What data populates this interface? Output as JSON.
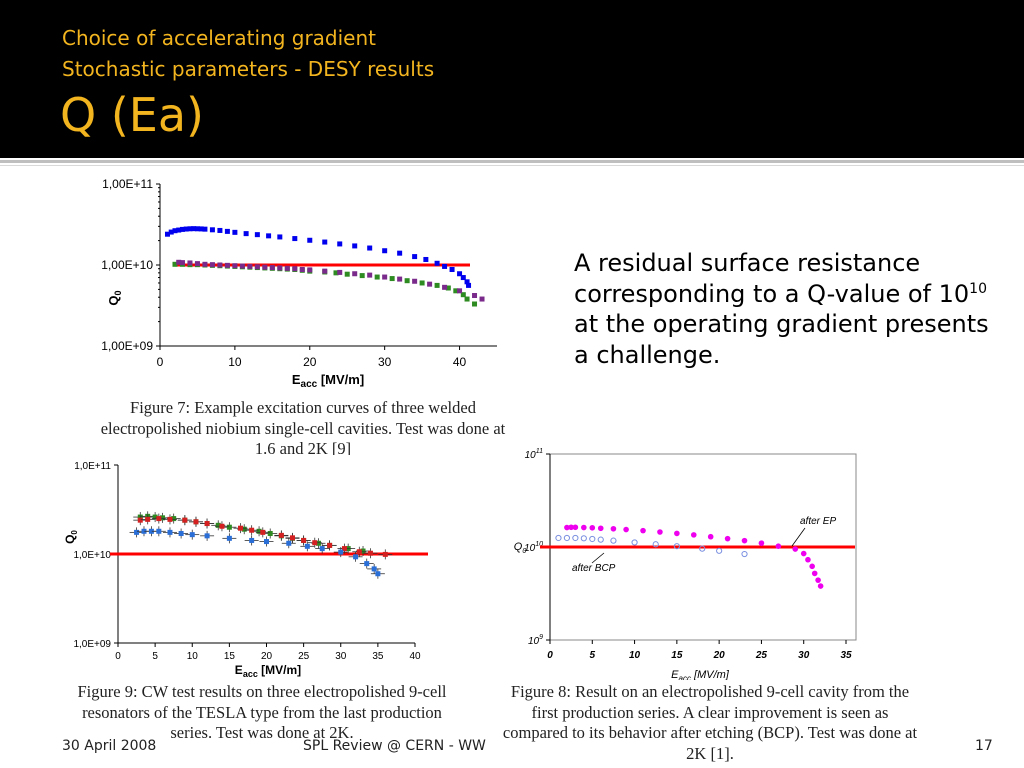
{
  "slide": {
    "subtitle_line1": "Choice of accelerating gradient",
    "subtitle_line2": "Stochastic parameters - DESY results",
    "title": "Q (Ea)",
    "body_before": "A residual surface resistance corresponding to a Q-value of 10",
    "body_sup": "10",
    "body_after": " at the operating gradient presents a challenge.",
    "footer_date": "30 April 2008",
    "footer_center": "SPL Review  @ CERN - WW",
    "page_number": "17",
    "colors": {
      "header_bg": "#000000",
      "title": "#f3b51f",
      "threshold_line": "#ff0000"
    }
  },
  "chart_data": [
    {
      "type": "scatter",
      "figure": "fig7",
      "caption": "Figure 7: Example excitation curves of three welded electropolished niobium single-cell cavities. Test was done at 1.6 and 2K [9]",
      "xlabel_main": "E",
      "xlabel_sub": "acc",
      "xlabel_unit": " [MV/m]",
      "ylabel_main": "Q",
      "ylabel_sub": "0",
      "y_scale": "log",
      "xlim": [
        0,
        45
      ],
      "ylim": [
        1000000000.0,
        100000000000.0
      ],
      "x_ticks": [
        0,
        10,
        20,
        30,
        40
      ],
      "x_tick_labels": [
        "0",
        "10",
        "20",
        "30",
        "40"
      ],
      "y_ticks": [
        1000000000.0,
        10000000000.0,
        100000000000.0
      ],
      "y_tick_labels": [
        "1,00E+09",
        "1,00E+10",
        "1,00E+11"
      ],
      "threshold": 10000000000.0,
      "series": [
        {
          "color": "#0000ee",
          "x": [
            1,
            1.5,
            2,
            2.5,
            3,
            3.5,
            4,
            4.5,
            5,
            5.5,
            6,
            7,
            8,
            9,
            10,
            11.5,
            13,
            14.5,
            16,
            18,
            20,
            22,
            24,
            26,
            28,
            30,
            32,
            34,
            35.5,
            37,
            38,
            39,
            40,
            40.5,
            41,
            41.2
          ],
          "y": [
            24000000000.0,
            25500000000.0,
            26500000000.0,
            27000000000.0,
            27500000000.0,
            27800000000.0,
            28000000000.0,
            28100000000.0,
            28000000000.0,
            27900000000.0,
            27700000000.0,
            27200000000.0,
            26700000000.0,
            26000000000.0,
            25300000000.0,
            24400000000.0,
            23700000000.0,
            22900000000.0,
            22200000000.0,
            21200000000.0,
            20200000000.0,
            19200000000.0,
            18200000000.0,
            17200000000.0,
            16200000000.0,
            15000000000.0,
            14000000000.0,
            12700000000.0,
            11700000000.0,
            10500000000.0,
            9600000000.0,
            8800000000.0,
            7800000000.0,
            7000000000.0,
            6200000000.0,
            5600000000.0
          ]
        },
        {
          "color": "#2e8b22",
          "x": [
            2,
            3,
            4,
            5,
            6,
            7,
            8,
            9,
            10,
            11,
            12,
            13,
            14,
            15,
            16,
            17,
            18,
            19,
            20,
            22,
            23.5,
            25,
            27,
            29,
            31,
            33,
            35,
            37,
            38.5,
            39.5,
            40.5,
            41,
            42
          ],
          "y": [
            10200000000.0,
            10200000000.0,
            10100000000.0,
            10100000000.0,
            10000000000.0,
            9900000000.0,
            9800000000.0,
            9700000000.0,
            9600000000.0,
            9500000000.0,
            9400000000.0,
            9300000000.0,
            9200000000.0,
            9100000000.0,
            9000000000.0,
            8900000000.0,
            8800000000.0,
            8600000000.0,
            8400000000.0,
            8200000000.0,
            8000000000.0,
            7700000000.0,
            7400000000.0,
            7100000000.0,
            6800000000.0,
            6400000000.0,
            6000000000.0,
            5600000000.0,
            5200000000.0,
            4800000000.0,
            4300000000.0,
            3800000000.0,
            3300000000.0
          ]
        },
        {
          "color": "#7a2a8a",
          "x": [
            2.5,
            3,
            4,
            5,
            6,
            7,
            8,
            9,
            10,
            11,
            12,
            13,
            14,
            15,
            16,
            17,
            18,
            19,
            20,
            22,
            24,
            26,
            28,
            30,
            32,
            34,
            36,
            38,
            40,
            42,
            43
          ],
          "y": [
            10800000000.0,
            10700000000.0,
            10600000000.0,
            10400000000.0,
            10200000000.0,
            10100000000.0,
            10000000000.0,
            9900000000.0,
            9800000000.0,
            9700000000.0,
            9600000000.0,
            9500000000.0,
            9400000000.0,
            9300000000.0,
            9200000000.0,
            9100000000.0,
            9000000000.0,
            8800000000.0,
            8700000000.0,
            8400000000.0,
            8100000000.0,
            7800000000.0,
            7500000000.0,
            7100000000.0,
            6700000000.0,
            6300000000.0,
            5800000000.0,
            5300000000.0,
            4800000000.0,
            4200000000.0,
            3800000000.0
          ]
        }
      ]
    },
    {
      "type": "scatter",
      "figure": "fig9",
      "caption": "Figure 9: CW test results on three electropolished 9-cell resonators of the TESLA type from the last production series. Test was done at 2K.",
      "xlabel_main": "E",
      "xlabel_sub": "acc",
      "xlabel_unit": " [MV/m]",
      "ylabel_main": "Q",
      "ylabel_sub": "0",
      "y_scale": "log",
      "xlim": [
        0,
        40
      ],
      "ylim": [
        1000000000.0,
        100000000000.0
      ],
      "x_ticks": [
        0,
        5,
        10,
        15,
        20,
        25,
        30,
        35,
        40
      ],
      "x_tick_labels": [
        "0",
        "5",
        "10",
        "15",
        "20",
        "25",
        "30",
        "35",
        "40"
      ],
      "y_ticks": [
        1000000000.0,
        10000000000.0,
        100000000000.0
      ],
      "y_tick_labels": [
        "1,0E+09",
        "1,0E+10",
        "1,0E+11"
      ],
      "threshold": 10000000000.0,
      "series": [
        {
          "color": "#2e8b22",
          "x": [
            3,
            4,
            5,
            6,
            7.5,
            9,
            10.5,
            12,
            13.5,
            15,
            17,
            19,
            20.5,
            22,
            23.5,
            25,
            27,
            28.5,
            31,
            33
          ],
          "y": [
            26000000000.0,
            26500000000.0,
            26000000000.0,
            25500000000.0,
            25000000000.0,
            24000000000.0,
            23000000000.0,
            22000000000.0,
            21000000000.0,
            20000000000.0,
            19000000000.0,
            18000000000.0,
            17000000000.0,
            16000000000.0,
            15000000000.0,
            14200000000.0,
            13200000000.0,
            12500000000.0,
            11500000000.0,
            10800000000.0
          ]
        },
        {
          "color": "#d42020",
          "x": [
            3,
            4,
            5.5,
            7,
            9,
            10.5,
            12,
            14,
            16.5,
            18,
            19.5,
            22,
            23.5,
            25,
            26.5,
            28.5,
            30.5,
            32.5,
            34,
            36
          ],
          "y": [
            24000000000.0,
            24500000000.0,
            25000000000.0,
            24500000000.0,
            24000000000.0,
            23000000000.0,
            22000000000.0,
            20500000000.0,
            19500000000.0,
            18500000000.0,
            17500000000.0,
            16200000000.0,
            15200000000.0,
            14200000000.0,
            13400000000.0,
            12500000000.0,
            11500000000.0,
            10600000000.0,
            10200000000.0,
            9900000000.0
          ]
        },
        {
          "color": "#2a6ed8",
          "x": [
            2.5,
            3.5,
            4.5,
            5.5,
            7,
            8.5,
            10,
            12,
            15,
            18,
            20,
            23,
            25.5,
            27.5,
            30,
            32,
            33.5,
            34.5,
            35
          ],
          "y": [
            17500000000.0,
            18000000000.0,
            18000000000.0,
            18000000000.0,
            17500000000.0,
            17000000000.0,
            16500000000.0,
            16000000000.0,
            15000000000.0,
            14200000000.0,
            13800000000.0,
            13200000000.0,
            12200000000.0,
            11500000000.0,
            10500000000.0,
            9300000000.0,
            7800000000.0,
            6800000000.0,
            6000000000.0
          ]
        }
      ]
    },
    {
      "type": "scatter",
      "figure": "fig8",
      "caption": "Figure 8: Result on an electropolished 9-cell cavity from the first production series. A clear improvement is seen as compared to its behavior after etching (BCP). Test was done at 2K [1].",
      "xlabel_main": "E",
      "xlabel_sub": "acc",
      "xlabel_unit": " [MV/m]",
      "ylabel_main": "Q",
      "ylabel_sub": "0",
      "y_scale": "log",
      "xlim": [
        0,
        35
      ],
      "ylim": [
        1000000000.0,
        100000000000.0
      ],
      "x_ticks": [
        0,
        5,
        10,
        15,
        20,
        25,
        30,
        35
      ],
      "x_tick_labels": [
        "0",
        "5",
        "10",
        "15",
        "20",
        "25",
        "30",
        "35"
      ],
      "y_ticks": [
        1000000000.0,
        10000000000.0,
        100000000000.0
      ],
      "y_tick_labels": [
        "10",
        "10",
        "10"
      ],
      "y_tick_exponents": [
        "9",
        "10",
        "11"
      ],
      "threshold": 10000000000.0,
      "annotations": [
        "after EP",
        "after BCP"
      ],
      "series": [
        {
          "name": "after EP",
          "color": "#ee00ee",
          "filled": true,
          "x": [
            2,
            2.5,
            3,
            4,
            5,
            6,
            7.5,
            9,
            11,
            13,
            15,
            17,
            19,
            21,
            23,
            25,
            27,
            29,
            30,
            30.5,
            31,
            31.3,
            31.7,
            32
          ],
          "y": [
            16200000000.0,
            16300000000.0,
            16300000000.0,
            16200000000.0,
            16100000000.0,
            15900000000.0,
            15700000000.0,
            15400000000.0,
            15000000000.0,
            14500000000.0,
            14000000000.0,
            13500000000.0,
            12900000000.0,
            12300000000.0,
            11700000000.0,
            11000000000.0,
            10200000000.0,
            9500000000.0,
            8500000000.0,
            7300000000.0,
            6200000000.0,
            5200000000.0,
            4400000000.0,
            3800000000.0
          ]
        },
        {
          "name": "after BCP",
          "color": "#7a8fe0",
          "filled": false,
          "x": [
            1,
            2,
            3,
            4,
            5,
            6,
            7.5,
            10,
            12.5,
            15,
            18,
            20,
            23
          ],
          "y": [
            12500000000.0,
            12500000000.0,
            12500000000.0,
            12400000000.0,
            12200000000.0,
            12000000000.0,
            11700000000.0,
            11200000000.0,
            10700000000.0,
            10200000000.0,
            9600000000.0,
            9100000000.0,
            8400000000.0
          ]
        }
      ]
    }
  ]
}
